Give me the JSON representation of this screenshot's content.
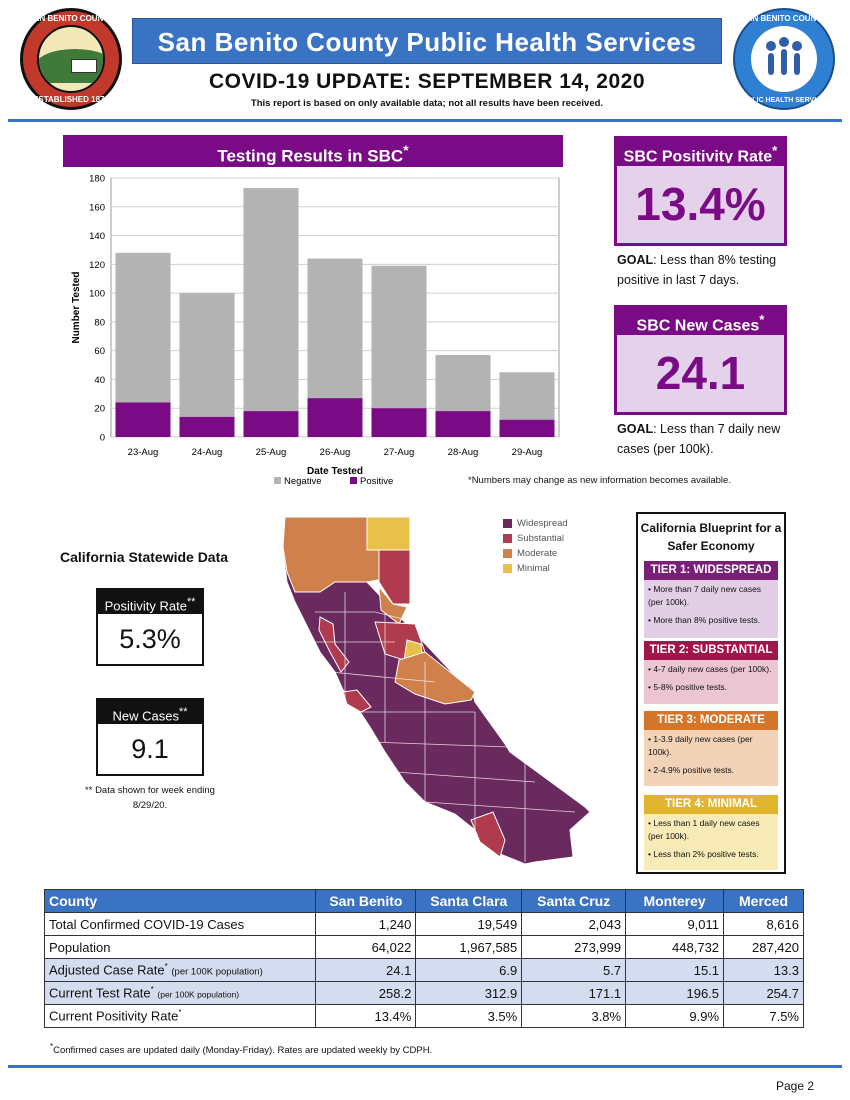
{
  "header": {
    "seal_left_lines": [
      "SAN BENITO COUNTY",
      "ESTABLISHED 1874"
    ],
    "seal_right_lines": [
      "SAN BENITO COUNTY",
      "PUBLIC HEALTH SERVICES",
      "Healthy People in Healthy Communities"
    ],
    "org_title": "San Benito County Public Health Services",
    "update_title": "COVID-19 UPDATE: SEPTEMBER 14, 2020",
    "report_note": "This report is based on only available data; not all results have been received."
  },
  "testing_chart": {
    "title": "Testing Results in SBC",
    "note": "*Numbers may change as new information becomes available."
  },
  "chart_data": {
    "type": "bar",
    "stacked": true,
    "title": "Testing Results in SBC",
    "xlabel": "Date Tested",
    "ylabel": "Number Tested",
    "categories": [
      "23-Aug",
      "24-Aug",
      "25-Aug",
      "26-Aug",
      "27-Aug",
      "28-Aug",
      "29-Aug"
    ],
    "series": [
      {
        "name": "Positive",
        "values": [
          24,
          14,
          18,
          27,
          20,
          18,
          12
        ],
        "color": "#7a0a86"
      },
      {
        "name": "Negative",
        "values": [
          104,
          86,
          155,
          97,
          99,
          39,
          33
        ],
        "color": "#b3b3b3"
      }
    ],
    "ylim": [
      0,
      180
    ],
    "yticks": [
      0,
      20,
      40,
      60,
      80,
      100,
      120,
      140,
      160,
      180
    ],
    "grid": true,
    "legend": "bottom-left"
  },
  "sbc_positivity": {
    "label": "SBC Positivity Rate",
    "value": "13.4%",
    "goal_label": "GOAL",
    "goal_text": ": Less than 8% testing positive in last 7 days."
  },
  "sbc_new_cases": {
    "label": "SBC New Cases",
    "value": "24.1",
    "goal_label": "GOAL",
    "goal_text": ": Less than 7 daily new cases (per 100k)."
  },
  "california": {
    "title": "California Statewide Data",
    "positivity_label": "Positivity Rate",
    "positivity_value": "5.3%",
    "new_cases_label": "New Cases",
    "new_cases_value": "9.1",
    "note": "** Data shown for week ending  8/29/20."
  },
  "map_legend": [
    {
      "label": "Widespread",
      "color": "#6a2a5e"
    },
    {
      "label": "Substantial",
      "color": "#b03a4e"
    },
    {
      "label": "Moderate",
      "color": "#d0804a"
    },
    {
      "label": "Minimal",
      "color": "#e8c04a"
    }
  ],
  "blueprint": {
    "title": "California Blueprint for a Safer Economy",
    "tiers": [
      {
        "name": "TIER 1: WIDESPREAD",
        "head_color": "#7a1f78",
        "body_color": "#e2cfe6",
        "items": [
          "• More than 7 daily new cases (per 100k).",
          "• More than 8% positive tests."
        ]
      },
      {
        "name": "TIER 2: SUBSTANTIAL",
        "head_color": "#a0154a",
        "body_color": "#ebc6d2",
        "items": [
          "• 4-7 daily new cases (per 100k).",
          "• 5-8% positive tests."
        ]
      },
      {
        "name": "TIER 3: MODERATE",
        "head_color": "#d4752a",
        "body_color": "#f3d3b8",
        "items": [
          "• 1-3.9 daily new cases (per 100k).",
          "• 2-4.9% positive tests."
        ]
      },
      {
        "name": "TIER 4: MINIMAL",
        "head_color": "#e1b52e",
        "body_color": "#f8ebb8",
        "items": [
          "• Less than 1 daily new cases (per 100k).",
          "• Less than 2% positive tests."
        ]
      }
    ]
  },
  "table": {
    "headers": [
      "County",
      "San Benito",
      "Santa Clara",
      "Santa Cruz",
      "Monterey",
      "Merced"
    ],
    "rows": [
      {
        "label": "Total Confirmed COVID-19 Cases",
        "sub": "",
        "values": [
          "1,240",
          "19,549",
          "2,043",
          "9,011",
          "8,616"
        ]
      },
      {
        "label": "Population",
        "sub": "",
        "values": [
          "64,022",
          "1,967,585",
          "273,999",
          "448,732",
          "287,420"
        ]
      },
      {
        "label": "Adjusted Case Rate",
        "sub": "(per 100K population)",
        "values": [
          "24.1",
          "6.9",
          "5.7",
          "15.1",
          "13.3"
        ]
      },
      {
        "label": "Current Test Rate",
        "sub": "(per 100K population)",
        "values": [
          "258.2",
          "312.9",
          "171.1",
          "196.5",
          "254.7"
        ]
      },
      {
        "label": "Current Positivity Rate",
        "sub": "",
        "values": [
          "13.4%",
          "3.5%",
          "3.8%",
          "9.9%",
          "7.5%"
        ]
      }
    ]
  },
  "footnote": "Confirmed cases are updated daily (Monday-Friday). Rates are updated weekly by CDPH.",
  "page": "Page 2"
}
